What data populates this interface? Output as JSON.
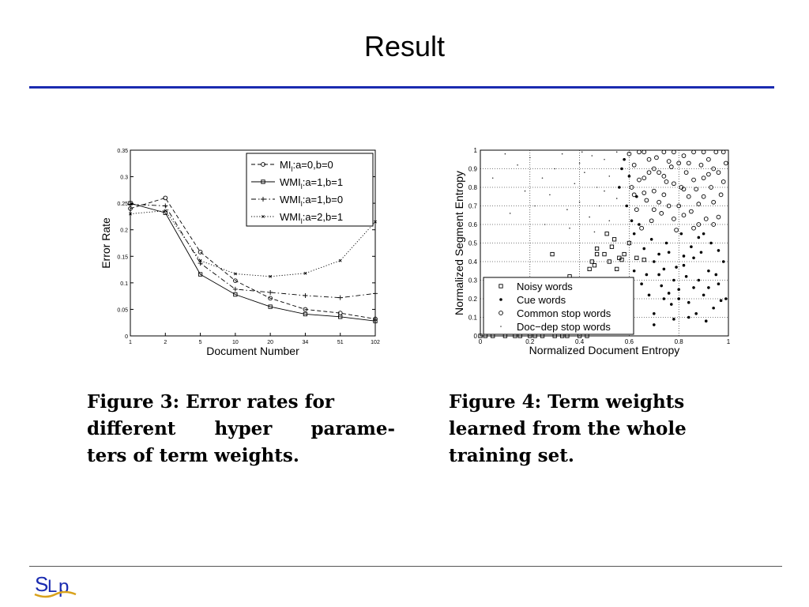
{
  "slide": {
    "title": "Result"
  },
  "captions": {
    "fig3": [
      "Figure 3:  Error rates for",
      "different  hyper  parame-",
      "ters of term weights."
    ],
    "fig4": [
      "Figure 4:  Term weights",
      "learned from the whole",
      "training set."
    ]
  },
  "logo": {
    "text": "SLP"
  },
  "colors": {
    "title_rule": "#1a2bb0",
    "ink": "#000000"
  },
  "chart_data": [
    {
      "type": "line",
      "xlabel": "Document Number",
      "ylabel": "Error Rate",
      "categories": [
        "1",
        "2",
        "5",
        "10",
        "20",
        "34",
        "51",
        "102"
      ],
      "yticks": [
        "0",
        "0.05",
        "0.1",
        "0.15",
        "0.2",
        "0.25",
        "0.3",
        "0.35"
      ],
      "ylim": [
        0,
        0.35
      ],
      "grid": false,
      "legend_position": "top-right",
      "series": [
        {
          "name": "MI",
          "sub": "l",
          "suffix": ":a=0,b=0",
          "style": "dashed",
          "marker": "circle",
          "values": [
            0.24,
            0.26,
            0.158,
            0.104,
            0.071,
            0.05,
            0.043,
            0.032
          ]
        },
        {
          "name": "WMI",
          "sub": "l",
          "suffix": ":a=1,b=1",
          "style": "solid",
          "marker": "square",
          "values": [
            0.25,
            0.232,
            0.116,
            0.078,
            0.055,
            0.041,
            0.036,
            0.028
          ]
        },
        {
          "name": "WMI",
          "sub": "l",
          "suffix": ":a=1,b=0",
          "style": "dashdot",
          "marker": "plus",
          "values": [
            0.248,
            0.245,
            0.137,
            0.088,
            0.082,
            0.076,
            0.072,
            0.08
          ]
        },
        {
          "name": "WMI",
          "sub": "l",
          "suffix": ":a=2,b=1",
          "style": "dotted",
          "marker": "x",
          "values": [
            0.23,
            0.236,
            0.142,
            0.117,
            0.112,
            0.118,
            0.142,
            0.215
          ]
        }
      ]
    },
    {
      "type": "scatter",
      "xlabel": "Normalized Document Entropy",
      "ylabel": "Normalized Segment Entropy",
      "xlim": [
        0,
        1
      ],
      "ylim": [
        0,
        1
      ],
      "xticks": [
        "0",
        "0.2",
        "0.4",
        "0.6",
        "0.8",
        "1"
      ],
      "yticks": [
        "0",
        "0.1",
        "0.2",
        "0.3",
        "0.4",
        "0.5",
        "0.6",
        "0.7",
        "0.8",
        "0.9",
        "1"
      ],
      "grid": true,
      "legend_position": "bottom-left",
      "series": [
        {
          "name": "Noisy words",
          "marker": "square",
          "points": [
            [
              0.0,
              0.0
            ],
            [
              0.02,
              0.0
            ],
            [
              0.05,
              0.0
            ],
            [
              0.1,
              0.0
            ],
            [
              0.14,
              0.0
            ],
            [
              0.16,
              0.0
            ],
            [
              0.2,
              0.0
            ],
            [
              0.22,
              0.0
            ],
            [
              0.25,
              0.0
            ],
            [
              0.3,
              0.0
            ],
            [
              0.33,
              0.0
            ],
            [
              0.35,
              0.0
            ],
            [
              0.4,
              0.0
            ],
            [
              0.43,
              0.0
            ],
            [
              0.29,
              0.44
            ],
            [
              0.36,
              0.32
            ],
            [
              0.44,
              0.36
            ],
            [
              0.46,
              0.38
            ],
            [
              0.47,
              0.44
            ],
            [
              0.5,
              0.44
            ],
            [
              0.45,
              0.4
            ],
            [
              0.47,
              0.47
            ],
            [
              0.52,
              0.4
            ],
            [
              0.57,
              0.41
            ],
            [
              0.56,
              0.42
            ],
            [
              0.53,
              0.48
            ],
            [
              0.55,
              0.36
            ],
            [
              0.6,
              0.5
            ],
            [
              0.63,
              0.42
            ],
            [
              0.66,
              0.41
            ],
            [
              0.58,
              0.44
            ],
            [
              0.51,
              0.55
            ],
            [
              0.54,
              0.52
            ]
          ]
        },
        {
          "name": "Cue words",
          "marker": "dot",
          "points": [
            [
              0.6,
              0.3
            ],
            [
              0.62,
              0.35
            ],
            [
              0.65,
              0.28
            ],
            [
              0.68,
              0.22
            ],
            [
              0.7,
              0.4
            ],
            [
              0.72,
              0.33
            ],
            [
              0.74,
              0.2
            ],
            [
              0.76,
              0.45
            ],
            [
              0.78,
              0.3
            ],
            [
              0.8,
              0.25
            ],
            [
              0.82,
              0.38
            ],
            [
              0.84,
              0.18
            ],
            [
              0.86,
              0.42
            ],
            [
              0.88,
              0.3
            ],
            [
              0.9,
              0.22
            ],
            [
              0.92,
              0.35
            ],
            [
              0.94,
              0.15
            ],
            [
              0.96,
              0.28
            ],
            [
              0.98,
              0.4
            ],
            [
              0.7,
              0.12
            ],
            [
              0.73,
              0.27
            ],
            [
              0.77,
              0.17
            ],
            [
              0.79,
              0.37
            ],
            [
              0.83,
              0.32
            ],
            [
              0.87,
              0.12
            ],
            [
              0.89,
              0.45
            ],
            [
              0.91,
              0.08
            ],
            [
              0.93,
              0.5
            ],
            [
              0.95,
              0.33
            ],
            [
              0.97,
              0.19
            ],
            [
              0.66,
              0.47
            ],
            [
              0.69,
              0.52
            ],
            [
              0.75,
              0.5
            ],
            [
              0.81,
              0.55
            ],
            [
              0.85,
              0.48
            ],
            [
              0.9,
              0.55
            ],
            [
              0.62,
              0.55
            ],
            [
              0.64,
              0.6
            ],
            [
              0.72,
              0.44
            ],
            [
              0.8,
              0.2
            ],
            [
              0.86,
              0.26
            ],
            [
              0.78,
              0.09
            ],
            [
              0.67,
              0.33
            ],
            [
              0.74,
              0.36
            ],
            [
              0.84,
              0.1
            ],
            [
              0.88,
              0.53
            ],
            [
              0.96,
              0.46
            ],
            [
              0.99,
              0.2
            ],
            [
              0.6,
              0.86
            ],
            [
              0.59,
              0.7
            ],
            [
              0.57,
              0.9
            ],
            [
              0.56,
              0.8
            ],
            [
              0.58,
              0.95
            ],
            [
              0.61,
              0.62
            ],
            [
              0.63,
              0.75
            ],
            [
              0.7,
              0.06
            ],
            [
              0.76,
              0.23
            ],
            [
              0.92,
              0.26
            ],
            [
              0.82,
              0.43
            ]
          ]
        },
        {
          "name": "Common stop words",
          "marker": "circle",
          "points": [
            [
              0.6,
              0.98
            ],
            [
              0.62,
              0.92
            ],
            [
              0.64,
              0.99
            ],
            [
              0.66,
              0.85
            ],
            [
              0.68,
              0.95
            ],
            [
              0.7,
              0.78
            ],
            [
              0.72,
              0.88
            ],
            [
              0.74,
              0.99
            ],
            [
              0.76,
              0.7
            ],
            [
              0.78,
              0.82
            ],
            [
              0.8,
              0.93
            ],
            [
              0.82,
              0.65
            ],
            [
              0.84,
              0.75
            ],
            [
              0.86,
              0.99
            ],
            [
              0.88,
              0.6
            ],
            [
              0.9,
              0.85
            ],
            [
              0.92,
              0.95
            ],
            [
              0.94,
              0.72
            ],
            [
              0.96,
              0.88
            ],
            [
              0.98,
              0.99
            ],
            [
              0.61,
              0.8
            ],
            [
              0.63,
              0.68
            ],
            [
              0.65,
              0.58
            ],
            [
              0.67,
              0.73
            ],
            [
              0.69,
              0.62
            ],
            [
              0.71,
              0.96
            ],
            [
              0.73,
              0.66
            ],
            [
              0.75,
              0.83
            ],
            [
              0.77,
              0.91
            ],
            [
              0.79,
              0.57
            ],
            [
              0.81,
              0.8
            ],
            [
              0.83,
              0.88
            ],
            [
              0.85,
              0.67
            ],
            [
              0.87,
              0.79
            ],
            [
              0.89,
              0.92
            ],
            [
              0.91,
              0.63
            ],
            [
              0.93,
              0.8
            ],
            [
              0.95,
              0.99
            ],
            [
              0.97,
              0.76
            ],
            [
              0.99,
              0.93
            ],
            [
              0.66,
              0.99
            ],
            [
              0.7,
              0.9
            ],
            [
              0.74,
              0.76
            ],
            [
              0.78,
              0.99
            ],
            [
              0.82,
              0.97
            ],
            [
              0.86,
              0.84
            ],
            [
              0.9,
              0.99
            ],
            [
              0.94,
              0.9
            ],
            [
              0.98,
              0.83
            ],
            [
              0.64,
              0.84
            ],
            [
              0.72,
              0.72
            ],
            [
              0.8,
              0.7
            ],
            [
              0.88,
              0.71
            ],
            [
              0.96,
              0.64
            ],
            [
              0.68,
              0.88
            ],
            [
              0.76,
              0.94
            ],
            [
              0.84,
              0.93
            ],
            [
              0.92,
              0.87
            ],
            [
              0.62,
              0.76
            ],
            [
              0.7,
              0.68
            ],
            [
              0.78,
              0.63
            ],
            [
              0.86,
              0.58
            ],
            [
              0.94,
              0.6
            ],
            [
              0.66,
              0.77
            ],
            [
              0.74,
              0.86
            ],
            [
              0.82,
              0.79
            ],
            [
              0.9,
              0.75
            ]
          ]
        },
        {
          "name": "Doc−dep stop words",
          "marker": "tiny",
          "points": [
            [
              0.15,
              0.92
            ],
            [
              0.2,
              0.96
            ],
            [
              0.25,
              0.85
            ],
            [
              0.3,
              0.9
            ],
            [
              0.33,
              0.98
            ],
            [
              0.38,
              0.82
            ],
            [
              0.4,
              0.93
            ],
            [
              0.42,
              0.88
            ],
            [
              0.45,
              0.97
            ],
            [
              0.47,
              0.8
            ],
            [
              0.5,
              0.95
            ],
            [
              0.52,
              0.86
            ],
            [
              0.55,
              0.99
            ],
            [
              0.18,
              0.78
            ],
            [
              0.22,
              0.7
            ],
            [
              0.28,
              0.76
            ],
            [
              0.35,
              0.68
            ],
            [
              0.4,
              0.72
            ],
            [
              0.44,
              0.64
            ],
            [
              0.48,
              0.7
            ],
            [
              0.52,
              0.62
            ],
            [
              0.55,
              0.74
            ],
            [
              0.1,
              0.98
            ],
            [
              0.05,
              0.85
            ],
            [
              0.12,
              0.66
            ],
            [
              0.26,
              0.6
            ],
            [
              0.36,
              0.58
            ],
            [
              0.46,
              0.56
            ],
            [
              0.5,
              0.78
            ],
            [
              0.41,
              0.99
            ]
          ]
        }
      ]
    }
  ]
}
